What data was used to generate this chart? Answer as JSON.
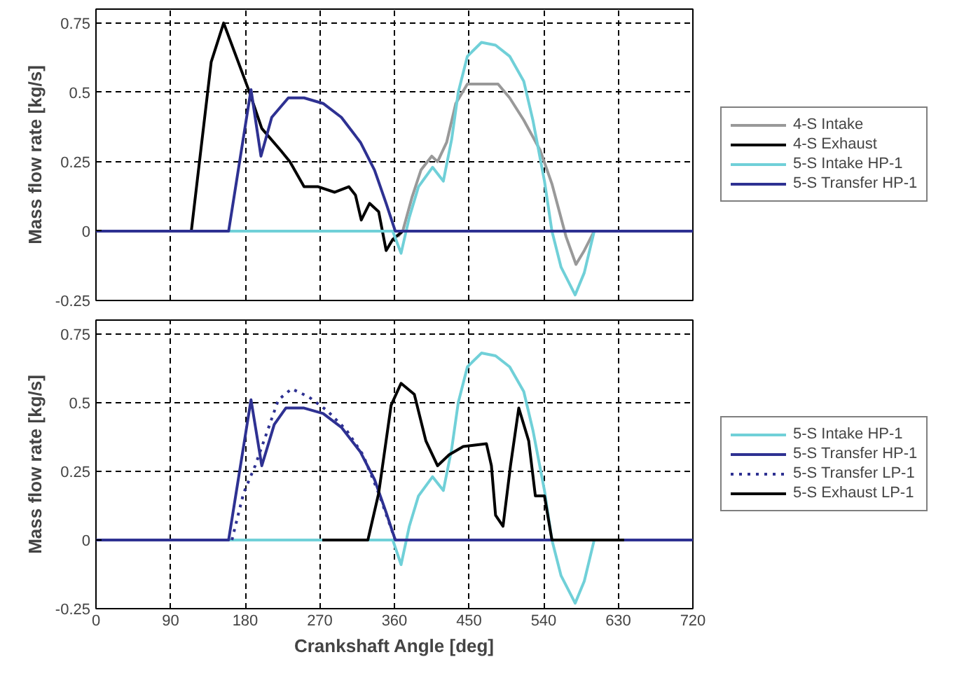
{
  "chart_data": [
    {
      "type": "line",
      "ylabel": "Mass flow rate [kg/s]",
      "xlim": [
        0,
        720
      ],
      "xticks": [
        0,
        90,
        180,
        270,
        360,
        450,
        540,
        630,
        720
      ],
      "ylim": [
        -0.25,
        0.8
      ],
      "yticks": [
        -0.25,
        0,
        0.25,
        0.5,
        0.75
      ],
      "tick_labels": "y",
      "grid": true,
      "legend": "right",
      "series": [
        {
          "name": "4-S Intake",
          "color": "#999999",
          "x": [
            364,
            370,
            381,
            392,
            405,
            412,
            423,
            434,
            448,
            471,
            485,
            499,
            516,
            536,
            550,
            567,
            579,
            589,
            601
          ],
          "values": [
            -0.02,
            0,
            0.12,
            0.22,
            0.27,
            0.25,
            0.32,
            0.46,
            0.53,
            0.53,
            0.53,
            0.48,
            0.4,
            0.29,
            0.17,
            -0.02,
            -0.12,
            -0.07,
            0
          ]
        },
        {
          "name": "4-S Exhaust",
          "color": "#000000",
          "x": [
            115,
            139,
            154,
            184,
            200,
            223,
            234,
            251,
            268,
            288,
            305,
            313,
            320,
            330,
            341,
            350,
            358,
            370
          ],
          "values": [
            0,
            0.61,
            0.75,
            0.51,
            0.37,
            0.29,
            0.25,
            0.16,
            0.16,
            0.14,
            0.16,
            0.13,
            0.04,
            0.1,
            0.07,
            -0.07,
            -0.03,
            0
          ]
        },
        {
          "name": "5-S Intake HP-1",
          "color": "#70d0d8",
          "x": [
            0,
            358,
            368,
            378,
            389,
            406,
            419,
            429,
            437,
            448,
            465,
            482,
            499,
            516,
            527,
            541,
            550,
            561,
            578,
            589,
            601,
            720
          ],
          "values": [
            0,
            0,
            -0.08,
            0.05,
            0.16,
            0.23,
            0.18,
            0.33,
            0.5,
            0.63,
            0.68,
            0.67,
            0.63,
            0.54,
            0.4,
            0.18,
            0,
            -0.13,
            -0.23,
            -0.15,
            0,
            0
          ]
        },
        {
          "name": "5-S Transfer HP-1",
          "color": "#2e3192",
          "x": [
            0,
            160,
            187,
            199,
            212,
            232,
            251,
            274,
            296,
            319,
            336,
            350,
            361,
            720
          ],
          "values": [
            0,
            0,
            0.51,
            0.27,
            0.41,
            0.48,
            0.48,
            0.46,
            0.41,
            0.32,
            0.22,
            0.1,
            0,
            0
          ]
        }
      ]
    },
    {
      "type": "line",
      "xlabel": "Crankshaft Angle [deg]",
      "ylabel": "Mass flow rate [kg/s]",
      "xlim": [
        0,
        720
      ],
      "xticks": [
        0,
        90,
        180,
        270,
        360,
        450,
        540,
        630,
        720
      ],
      "ylim": [
        -0.25,
        0.8
      ],
      "yticks": [
        -0.25,
        0,
        0.25,
        0.5,
        0.75
      ],
      "grid": true,
      "legend": "right",
      "series": [
        {
          "name": "5-S Intake HP-1",
          "color": "#70d0d8",
          "x": [
            0,
            358,
            368,
            378,
            389,
            406,
            419,
            429,
            437,
            448,
            465,
            482,
            499,
            516,
            527,
            541,
            550,
            561,
            578,
            589,
            601,
            720
          ],
          "values": [
            0,
            0,
            -0.09,
            0.05,
            0.16,
            0.23,
            0.18,
            0.33,
            0.5,
            0.63,
            0.68,
            0.67,
            0.63,
            0.54,
            0.4,
            0.18,
            0,
            -0.13,
            -0.23,
            -0.15,
            0,
            0
          ]
        },
        {
          "name": "5-S Transfer HP-1",
          "color": "#2e3192",
          "x": [
            0,
            160,
            187,
            200,
            215,
            229,
            251,
            274,
            296,
            319,
            336,
            350,
            361,
            720
          ],
          "values": [
            0,
            0,
            0.51,
            0.27,
            0.42,
            0.48,
            0.48,
            0.46,
            0.41,
            0.32,
            0.22,
            0.1,
            0,
            0
          ]
        },
        {
          "name": "5-S Transfer LP-1",
          "color": "#2e3192",
          "line_style": "dotted",
          "x": [
            164,
            178,
            192,
            206,
            220,
            236,
            257,
            279,
            302,
            322,
            341,
            361
          ],
          "values": [
            0,
            0.17,
            0.27,
            0.39,
            0.51,
            0.55,
            0.52,
            0.47,
            0.4,
            0.31,
            0.17,
            0
          ]
        },
        {
          "name": "5-S Exhaust LP-1",
          "color": "#000000",
          "x": [
            273,
            328,
            341,
            356,
            368,
            384,
            398,
            412,
            426,
            443,
            471,
            477,
            482,
            491,
            500,
            510,
            522,
            530,
            541,
            550,
            637
          ],
          "values": [
            0,
            0,
            0.17,
            0.49,
            0.57,
            0.53,
            0.36,
            0.27,
            0.31,
            0.34,
            0.35,
            0.27,
            0.09,
            0.05,
            0.27,
            0.48,
            0.36,
            0.16,
            0.16,
            0,
            0
          ]
        }
      ]
    }
  ]
}
